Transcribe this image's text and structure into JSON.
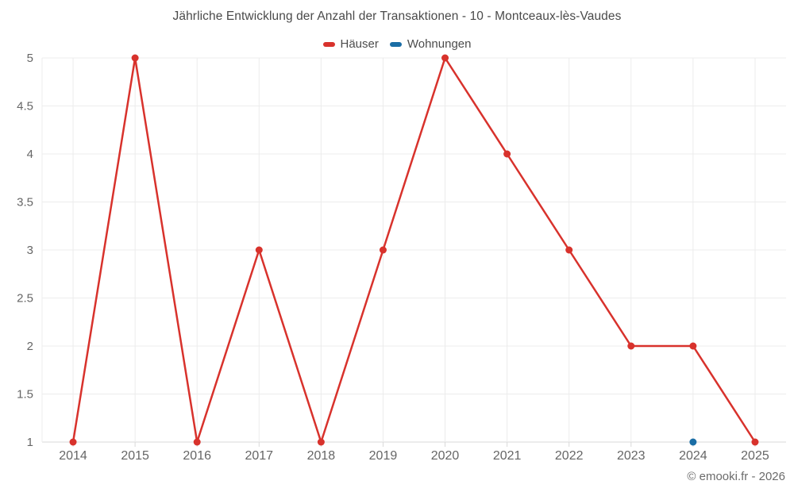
{
  "title": "Jährliche Entwicklung der Anzahl der Transaktionen - 10 - Montceaux-lès-Vaudes",
  "legend": {
    "items": [
      {
        "label": "Häuser",
        "color": "#d8322c"
      },
      {
        "label": "Wohnungen",
        "color": "#1a6da5"
      }
    ]
  },
  "copyright": "© emooki.fr - 2026",
  "colors": {
    "grid": "#ececec",
    "axis": "#d9d9d9",
    "tick_text": "#666666",
    "title_text": "#4a4a4a",
    "background": "#ffffff"
  },
  "chart_data": {
    "type": "line",
    "title": "Jährliche Entwicklung der Anzahl der Transaktionen - 10 - Montceaux-lès-Vaudes",
    "categories": [
      "2014",
      "2015",
      "2016",
      "2017",
      "2018",
      "2019",
      "2020",
      "2021",
      "2022",
      "2023",
      "2024",
      "2025"
    ],
    "series": [
      {
        "name": "Häuser",
        "color": "#d8322c",
        "values": [
          1,
          5,
          1,
          3,
          1,
          3,
          5,
          4,
          3,
          2,
          2,
          1
        ]
      },
      {
        "name": "Wohnungen",
        "color": "#1a6da5",
        "values": [
          null,
          null,
          null,
          null,
          null,
          null,
          null,
          null,
          null,
          null,
          1,
          null
        ]
      }
    ],
    "xlabel": "",
    "ylabel": "",
    "ylim": [
      1,
      5
    ],
    "yticks": [
      1,
      1.5,
      2,
      2.5,
      3,
      3.5,
      4,
      4.5,
      5
    ],
    "ytick_labels": [
      "1",
      "1.5",
      "2",
      "2.5",
      "3",
      "3.5",
      "4",
      "4.5",
      "5"
    ],
    "grid": true,
    "legend_position": "top"
  }
}
